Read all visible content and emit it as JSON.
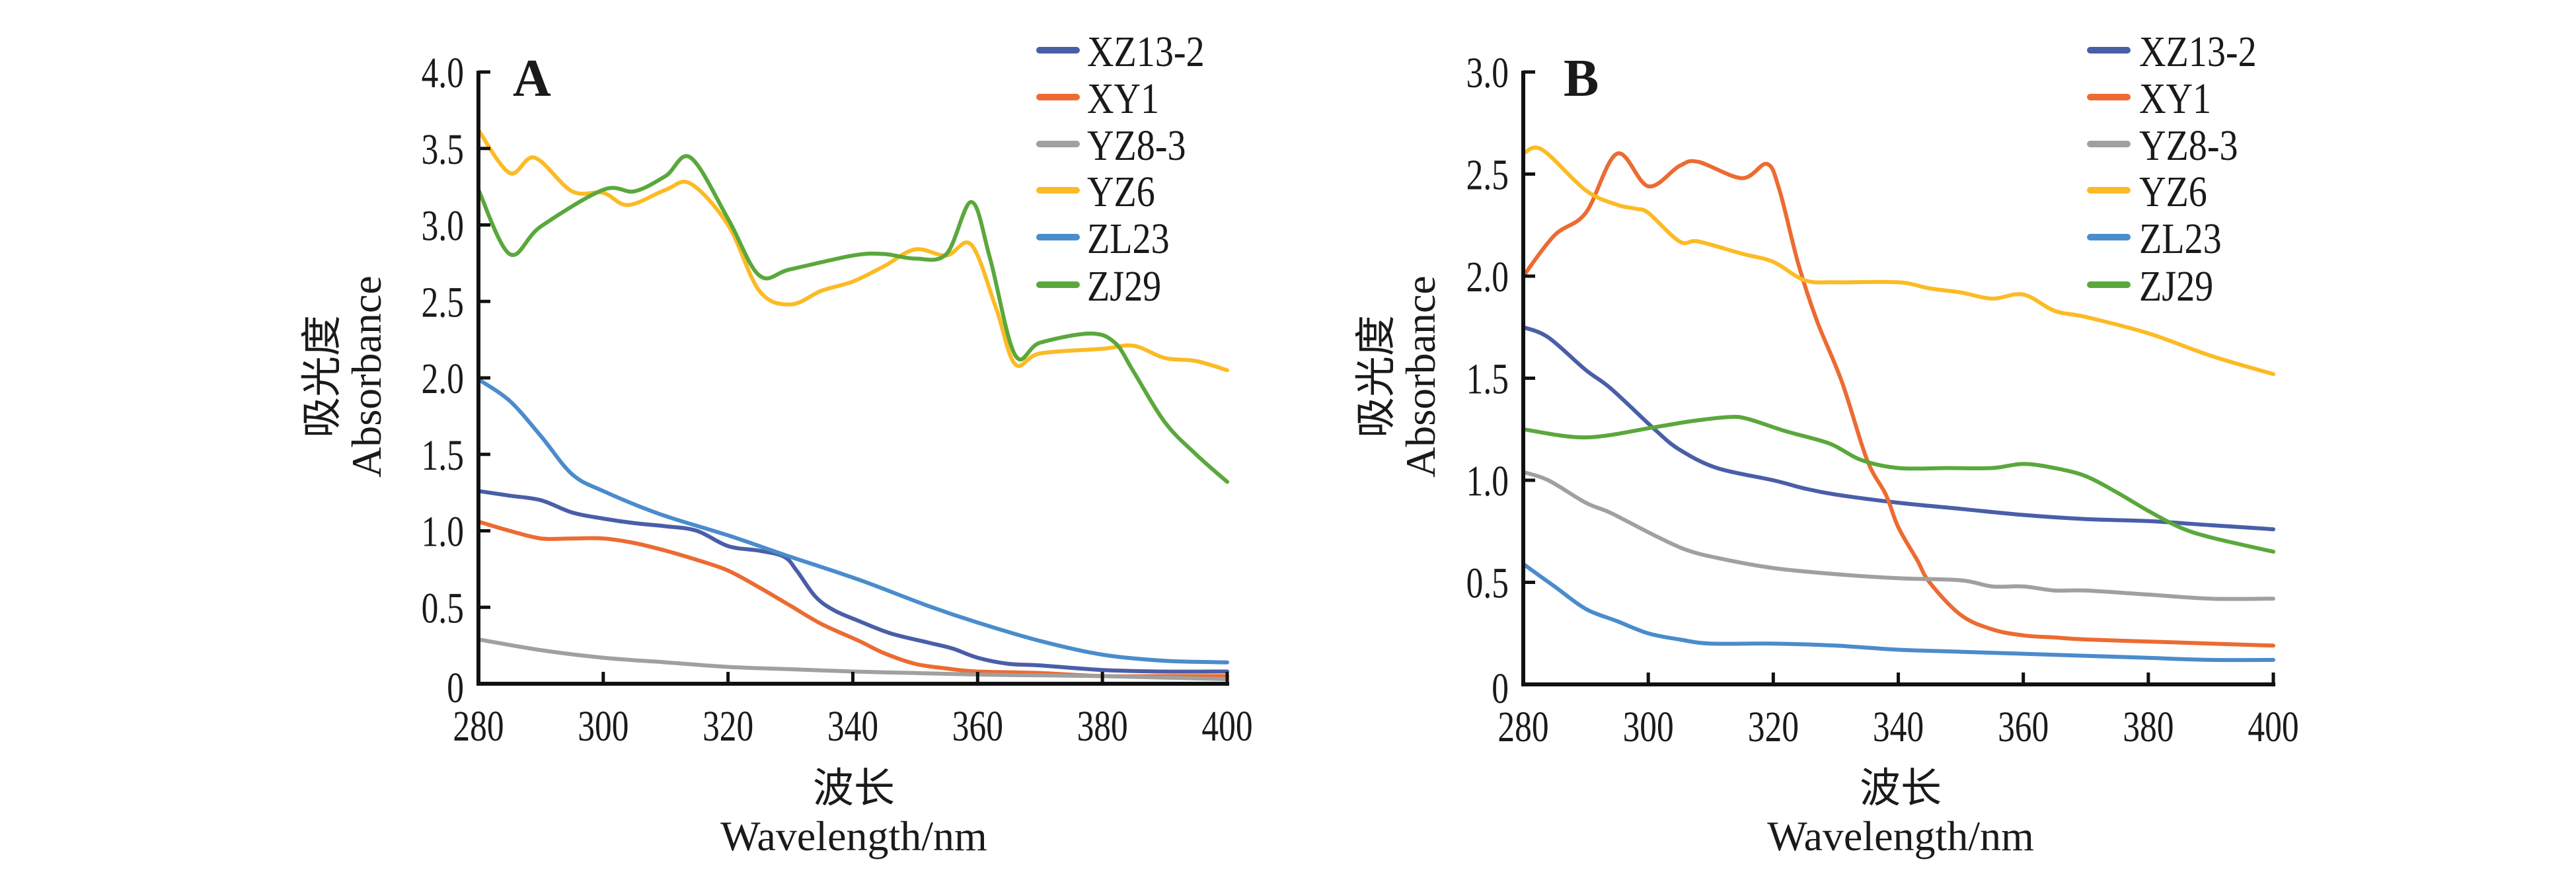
{
  "chart_data": [
    {
      "type": "line",
      "panel_label": "A",
      "title": "",
      "xlabel_cn": "波长",
      "xlabel": "Wavelength/nm",
      "ylabel_cn": "吸光度",
      "ylabel": "Absorbance",
      "xlim": [
        280,
        400
      ],
      "ylim": [
        0,
        4.0
      ],
      "xticks": [
        280,
        300,
        320,
        340,
        360,
        380,
        400
      ],
      "xtick_labels": [
        "280",
        "300",
        "320",
        "340",
        "360",
        "380",
        "400"
      ],
      "yticks": [
        0,
        0.5,
        1.0,
        1.5,
        2.0,
        2.5,
        3.0,
        3.5,
        4.0
      ],
      "ytick_labels": [
        "0",
        "0.5",
        "1.0",
        "1.5",
        "2.0",
        "2.5",
        "3.0",
        "3.5",
        "4.0"
      ],
      "grid": false,
      "legend_position": "top-right",
      "series": [
        {
          "name": "XZ13-2",
          "color": "#4a5ea8",
          "x": [
            280,
            285,
            290,
            295,
            300,
            305,
            310,
            315,
            320,
            325,
            329,
            331,
            334,
            337,
            341,
            346,
            352,
            356,
            360,
            365,
            370,
            380,
            390,
            400
          ],
          "y": [
            1.26,
            1.23,
            1.2,
            1.12,
            1.08,
            1.05,
            1.03,
            1.0,
            0.9,
            0.87,
            0.83,
            0.74,
            0.57,
            0.48,
            0.41,
            0.33,
            0.27,
            0.23,
            0.17,
            0.13,
            0.12,
            0.09,
            0.08,
            0.08
          ]
        },
        {
          "name": "XY1",
          "color": "#ec6b32",
          "x": [
            280,
            285,
            290,
            295,
            300,
            305,
            310,
            315,
            320,
            325,
            330,
            335,
            341,
            345,
            350,
            355,
            360,
            370,
            380,
            390,
            400
          ],
          "y": [
            1.06,
            1.0,
            0.95,
            0.95,
            0.95,
            0.92,
            0.87,
            0.81,
            0.74,
            0.63,
            0.51,
            0.39,
            0.28,
            0.2,
            0.13,
            0.1,
            0.08,
            0.07,
            0.05,
            0.05,
            0.05
          ]
        },
        {
          "name": "YZ8-3",
          "color": "#a0a0a0",
          "x": [
            280,
            290,
            300,
            310,
            320,
            330,
            340,
            350,
            360,
            370,
            380,
            390,
            400
          ],
          "y": [
            0.29,
            0.22,
            0.17,
            0.14,
            0.11,
            0.095,
            0.08,
            0.07,
            0.06,
            0.055,
            0.05,
            0.04,
            0.03
          ]
        },
        {
          "name": "YZ6",
          "color": "#fbbb24",
          "x": [
            280,
            285,
            289,
            295,
            300,
            304,
            310,
            314,
            320,
            325,
            330,
            335,
            340,
            345,
            350,
            355,
            359,
            363,
            366,
            370,
            380,
            385,
            390,
            395,
            400
          ],
          "y": [
            3.62,
            3.34,
            3.44,
            3.22,
            3.21,
            3.13,
            3.23,
            3.27,
            3.0,
            2.57,
            2.48,
            2.57,
            2.63,
            2.73,
            2.84,
            2.8,
            2.87,
            2.45,
            2.09,
            2.16,
            2.19,
            2.21,
            2.13,
            2.11,
            2.05
          ]
        },
        {
          "name": "ZL23",
          "color": "#4a8ccc",
          "x": [
            280,
            285,
            290,
            295,
            300,
            309,
            320,
            330,
            341,
            352,
            360,
            370,
            380,
            390,
            400
          ],
          "y": [
            1.99,
            1.85,
            1.62,
            1.37,
            1.26,
            1.11,
            0.97,
            0.83,
            0.68,
            0.51,
            0.4,
            0.28,
            0.19,
            0.15,
            0.14
          ]
        },
        {
          "name": "ZJ29",
          "color": "#5aa83c",
          "x": [
            280,
            285,
            290,
            300,
            305,
            310,
            314,
            320,
            325,
            330,
            340,
            345,
            350,
            355,
            359,
            362,
            366,
            370,
            378,
            382,
            385,
            390,
            395,
            400
          ],
          "y": [
            3.23,
            2.81,
            2.99,
            3.23,
            3.22,
            3.32,
            3.44,
            3.04,
            2.67,
            2.71,
            2.8,
            2.81,
            2.78,
            2.81,
            3.15,
            2.78,
            2.15,
            2.23,
            2.29,
            2.23,
            2.04,
            1.71,
            1.5,
            1.32
          ]
        }
      ]
    },
    {
      "type": "line",
      "panel_label": "B",
      "title": "",
      "xlabel_cn": "波长",
      "xlabel": "Wavelength/nm",
      "ylabel_cn": "吸光度",
      "ylabel": "Absorbance",
      "xlim": [
        280,
        400
      ],
      "ylim": [
        0,
        3.0
      ],
      "xticks": [
        280,
        300,
        320,
        340,
        360,
        380,
        400
      ],
      "xtick_labels": [
        "280",
        "300",
        "320",
        "340",
        "360",
        "380",
        "400"
      ],
      "yticks": [
        0,
        0.5,
        1.0,
        1.5,
        2.0,
        2.5,
        3.0
      ],
      "ytick_labels": [
        "0",
        "0.5",
        "1.0",
        "1.5",
        "2.0",
        "2.5",
        "3.0"
      ],
      "grid": false,
      "legend_position": "top-right",
      "series": [
        {
          "name": "XZ13-2",
          "color": "#4a5ea8",
          "x": [
            280,
            284,
            290,
            294,
            301,
            305,
            311,
            320,
            325,
            330,
            340,
            350,
            360,
            370,
            380,
            390,
            400
          ],
          "y": [
            1.75,
            1.7,
            1.54,
            1.45,
            1.25,
            1.15,
            1.06,
            1.0,
            0.96,
            0.93,
            0.89,
            0.86,
            0.83,
            0.81,
            0.8,
            0.78,
            0.76
          ]
        },
        {
          "name": "XY1",
          "color": "#ec6b32",
          "x": [
            280,
            285,
            290,
            295,
            300,
            305,
            308,
            315,
            319,
            321,
            324,
            327,
            331,
            335,
            338,
            340,
            343,
            345,
            350,
            355,
            360,
            365,
            370,
            380,
            390,
            400
          ],
          "y": [
            2.0,
            2.2,
            2.31,
            2.6,
            2.44,
            2.54,
            2.56,
            2.48,
            2.55,
            2.42,
            2.06,
            1.78,
            1.48,
            1.1,
            0.93,
            0.77,
            0.61,
            0.5,
            0.34,
            0.27,
            0.24,
            0.23,
            0.22,
            0.21,
            0.2,
            0.19
          ]
        },
        {
          "name": "YZ8-3",
          "color": "#a0a0a0",
          "x": [
            280,
            284,
            290,
            294,
            301,
            306,
            311,
            320,
            330,
            340,
            350,
            355,
            360,
            365,
            370,
            380,
            390,
            400
          ],
          "y": [
            1.04,
            1.0,
            0.89,
            0.84,
            0.73,
            0.66,
            0.62,
            0.57,
            0.54,
            0.52,
            0.51,
            0.48,
            0.48,
            0.46,
            0.46,
            0.44,
            0.42,
            0.42
          ]
        },
        {
          "name": "YZ6",
          "color": "#fbbb24",
          "x": [
            280,
            283,
            290,
            295,
            298,
            300,
            305,
            308,
            315,
            320,
            325,
            330,
            340,
            345,
            350,
            355,
            360,
            365,
            370,
            380,
            390,
            400
          ],
          "y": [
            2.6,
            2.62,
            2.42,
            2.35,
            2.33,
            2.31,
            2.17,
            2.17,
            2.11,
            2.07,
            1.98,
            1.97,
            1.97,
            1.94,
            1.92,
            1.89,
            1.91,
            1.83,
            1.8,
            1.72,
            1.61,
            1.52
          ]
        },
        {
          "name": "ZL23",
          "color": "#4a8ccc",
          "x": [
            280,
            285,
            290,
            295,
            300,
            305,
            310,
            320,
            330,
            340,
            350,
            360,
            370,
            380,
            390,
            400
          ],
          "y": [
            0.59,
            0.48,
            0.37,
            0.31,
            0.25,
            0.22,
            0.2,
            0.2,
            0.19,
            0.17,
            0.16,
            0.15,
            0.14,
            0.13,
            0.12,
            0.12
          ]
        },
        {
          "name": "ZJ29",
          "color": "#5aa83c",
          "x": [
            280,
            290,
            301,
            307,
            313,
            316,
            322,
            329,
            334,
            340,
            348,
            355,
            360,
            365,
            370,
            375,
            380,
            385,
            390,
            400
          ],
          "y": [
            1.25,
            1.21,
            1.26,
            1.29,
            1.31,
            1.3,
            1.24,
            1.18,
            1.1,
            1.06,
            1.06,
            1.06,
            1.08,
            1.06,
            1.02,
            0.94,
            0.85,
            0.77,
            0.72,
            0.65
          ]
        }
      ]
    }
  ]
}
